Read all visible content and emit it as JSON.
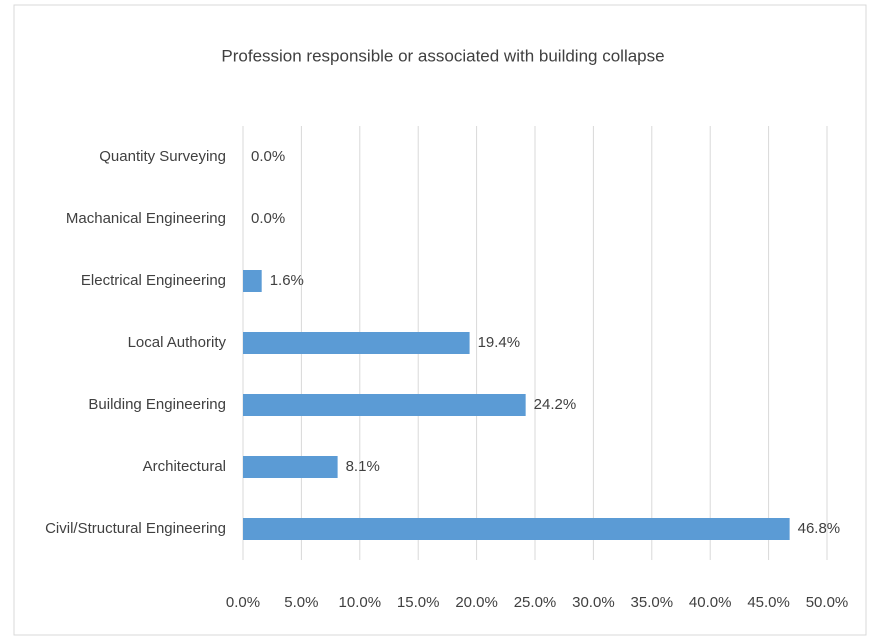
{
  "chart_data": {
    "type": "bar",
    "orientation": "horizontal",
    "title": "Profession responsible or associated with building collapse",
    "categories": [
      "Quantity Surveying",
      "Machanical Engineering",
      "Electrical Engineering",
      "Local Authority",
      "Building Engineering",
      "Architectural",
      "Civil/Structural Engineering"
    ],
    "values": [
      0,
      0,
      1.6,
      19.4,
      24.2,
      8.1,
      46.8
    ],
    "value_labels": [
      "0.0%",
      "0.0%",
      "1.6%",
      "19.4%",
      "24.2%",
      "8.1%",
      "46.8%"
    ],
    "color": "#5b9bd5",
    "xlim": [
      0,
      50
    ],
    "xticks": [
      {
        "value": 0,
        "label": "0.0%"
      },
      {
        "value": 5,
        "label": "5.0%"
      },
      {
        "value": 10,
        "label": "10.0%"
      },
      {
        "value": 15,
        "label": "15.0%"
      },
      {
        "value": 20,
        "label": "20.0%"
      },
      {
        "value": 25,
        "label": "25.0%"
      },
      {
        "value": 30,
        "label": "30.0%"
      },
      {
        "value": 35,
        "label": "35.0%"
      },
      {
        "value": 40,
        "label": "40.0%"
      },
      {
        "value": 45,
        "label": "45.0%"
      },
      {
        "value": 50,
        "label": "50.0%"
      }
    ],
    "grid": true
  }
}
